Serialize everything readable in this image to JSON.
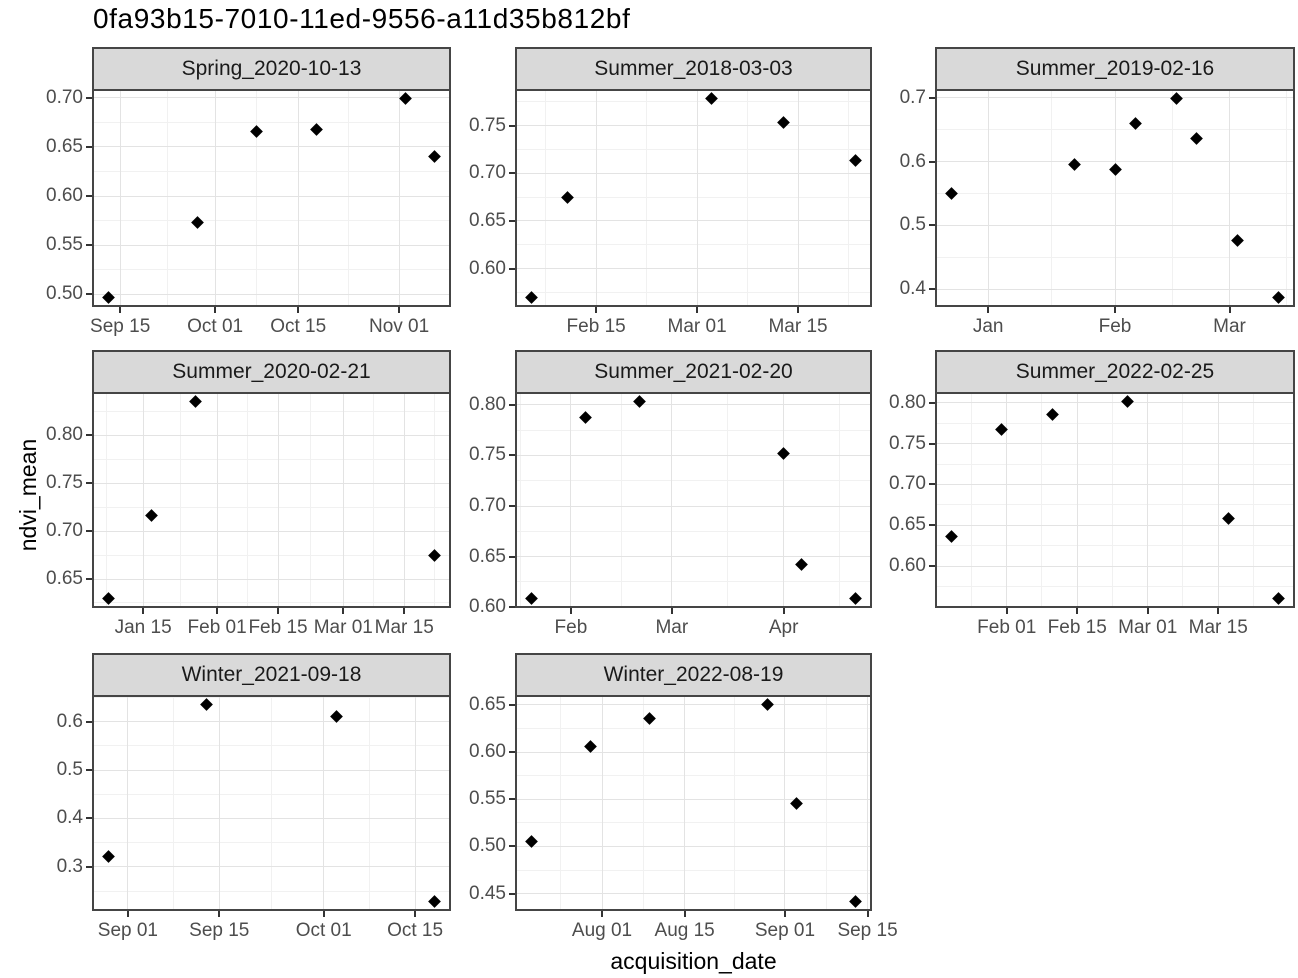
{
  "title": "0fa93b15-7010-11ed-9556-a11d35b812bf",
  "axes": {
    "y_label": "ndvi_mean",
    "x_label": "acquisition_date"
  },
  "colors": {
    "background": "#ffffff",
    "strip_bg": "#d9d9d9",
    "border": "#454545",
    "grid_major": "#e3e3e3",
    "grid_minor": "#f1f1f1",
    "axis_text": "#4d4d4d",
    "strip_text": "#1a1a1a",
    "point": "#000000"
  },
  "chart_data": [
    {
      "type": "scatter",
      "title": "Spring_2020-10-13",
      "x_ticks": [
        {
          "label": "Sep 15",
          "date": "2020-09-15"
        },
        {
          "label": "Oct 01",
          "date": "2020-10-01"
        },
        {
          "label": "Oct 15",
          "date": "2020-10-15"
        },
        {
          "label": "Nov 01",
          "date": "2020-11-01"
        }
      ],
      "y_ticks": [
        {
          "label": "0.50",
          "value": 0.5
        },
        {
          "label": "0.55",
          "value": 0.55
        },
        {
          "label": "0.60",
          "value": 0.6
        },
        {
          "label": "0.65",
          "value": 0.65
        },
        {
          "label": "0.70",
          "value": 0.7
        }
      ],
      "points": [
        {
          "date": "2020-09-13",
          "ndvi": 0.497
        },
        {
          "date": "2020-09-28",
          "ndvi": 0.573
        },
        {
          "date": "2020-10-08",
          "ndvi": 0.666
        },
        {
          "date": "2020-10-18",
          "ndvi": 0.668
        },
        {
          "date": "2020-11-02",
          "ndvi": 0.699
        },
        {
          "date": "2020-11-07",
          "ndvi": 0.64
        }
      ]
    },
    {
      "type": "scatter",
      "title": "Summer_2018-03-03",
      "x_ticks": [
        {
          "label": "Feb 15",
          "date": "2018-02-15"
        },
        {
          "label": "Mar 01",
          "date": "2018-03-01"
        },
        {
          "label": "Mar 15",
          "date": "2018-03-15"
        }
      ],
      "y_ticks": [
        {
          "label": "0.60",
          "value": 0.6
        },
        {
          "label": "0.65",
          "value": 0.65
        },
        {
          "label": "0.70",
          "value": 0.7
        },
        {
          "label": "0.75",
          "value": 0.75
        }
      ],
      "points": [
        {
          "date": "2018-02-06",
          "ndvi": 0.57
        },
        {
          "date": "2018-02-11",
          "ndvi": 0.675
        },
        {
          "date": "2018-03-03",
          "ndvi": 0.778
        },
        {
          "date": "2018-03-13",
          "ndvi": 0.753
        },
        {
          "date": "2018-03-23",
          "ndvi": 0.713
        }
      ]
    },
    {
      "type": "scatter",
      "title": "Summer_2019-02-16",
      "x_ticks": [
        {
          "label": "Jan",
          "date": "2019-01-01"
        },
        {
          "label": "Feb",
          "date": "2019-02-01"
        },
        {
          "label": "Mar",
          "date": "2019-03-01"
        }
      ],
      "y_ticks": [
        {
          "label": "0.4",
          "value": 0.4
        },
        {
          "label": "0.5",
          "value": 0.5
        },
        {
          "label": "0.6",
          "value": 0.6
        },
        {
          "label": "0.7",
          "value": 0.7
        }
      ],
      "points": [
        {
          "date": "2018-12-23",
          "ndvi": 0.55
        },
        {
          "date": "2019-01-22",
          "ndvi": 0.595
        },
        {
          "date": "2019-02-01",
          "ndvi": 0.587
        },
        {
          "date": "2019-02-06",
          "ndvi": 0.66
        },
        {
          "date": "2019-02-16",
          "ndvi": 0.698
        },
        {
          "date": "2019-02-21",
          "ndvi": 0.636
        },
        {
          "date": "2019-03-03",
          "ndvi": 0.476
        },
        {
          "date": "2019-03-13",
          "ndvi": 0.388
        }
      ]
    },
    {
      "type": "scatter",
      "title": "Summer_2020-02-21",
      "x_ticks": [
        {
          "label": "Jan 15",
          "date": "2020-01-15"
        },
        {
          "label": "Feb 01",
          "date": "2020-02-01"
        },
        {
          "label": "Feb 15",
          "date": "2020-02-15"
        },
        {
          "label": "Mar 01",
          "date": "2020-03-01"
        },
        {
          "label": "Mar 15",
          "date": "2020-03-15"
        }
      ],
      "y_ticks": [
        {
          "label": "0.65",
          "value": 0.65
        },
        {
          "label": "0.70",
          "value": 0.7
        },
        {
          "label": "0.75",
          "value": 0.75
        },
        {
          "label": "0.80",
          "value": 0.8
        }
      ],
      "points": [
        {
          "date": "2020-01-07",
          "ndvi": 0.63
        },
        {
          "date": "2020-01-17",
          "ndvi": 0.716
        },
        {
          "date": "2020-01-27",
          "ndvi": 0.835
        },
        {
          "date": "2020-03-22",
          "ndvi": 0.675
        }
      ]
    },
    {
      "type": "scatter",
      "title": "Summer_2021-02-20",
      "x_ticks": [
        {
          "label": "Feb",
          "date": "2021-02-01"
        },
        {
          "label": "Mar",
          "date": "2021-03-01"
        },
        {
          "label": "Apr",
          "date": "2021-04-01"
        }
      ],
      "y_ticks": [
        {
          "label": "0.60",
          "value": 0.6
        },
        {
          "label": "0.65",
          "value": 0.65
        },
        {
          "label": "0.70",
          "value": 0.7
        },
        {
          "label": "0.75",
          "value": 0.75
        },
        {
          "label": "0.80",
          "value": 0.8
        }
      ],
      "points": [
        {
          "date": "2021-01-21",
          "ndvi": 0.609
        },
        {
          "date": "2021-02-05",
          "ndvi": 0.788
        },
        {
          "date": "2021-02-20",
          "ndvi": 0.803
        },
        {
          "date": "2021-04-01",
          "ndvi": 0.752
        },
        {
          "date": "2021-04-06",
          "ndvi": 0.642
        },
        {
          "date": "2021-04-21",
          "ndvi": 0.609
        }
      ]
    },
    {
      "type": "scatter",
      "title": "Summer_2022-02-25",
      "x_ticks": [
        {
          "label": "Feb 01",
          "date": "2022-02-01"
        },
        {
          "label": "Feb 15",
          "date": "2022-02-15"
        },
        {
          "label": "Mar 01",
          "date": "2022-03-01"
        },
        {
          "label": "Mar 15",
          "date": "2022-03-15"
        }
      ],
      "y_ticks": [
        {
          "label": "0.60",
          "value": 0.6
        },
        {
          "label": "0.65",
          "value": 0.65
        },
        {
          "label": "0.70",
          "value": 0.7
        },
        {
          "label": "0.75",
          "value": 0.75
        },
        {
          "label": "0.80",
          "value": 0.8
        }
      ],
      "points": [
        {
          "date": "2022-01-21",
          "ndvi": 0.637
        },
        {
          "date": "2022-01-31",
          "ndvi": 0.767
        },
        {
          "date": "2022-02-10",
          "ndvi": 0.785
        },
        {
          "date": "2022-02-25",
          "ndvi": 0.801
        },
        {
          "date": "2022-03-17",
          "ndvi": 0.658
        },
        {
          "date": "2022-03-27",
          "ndvi": 0.561
        }
      ]
    },
    {
      "type": "scatter",
      "title": "Winter_2021-09-18",
      "x_ticks": [
        {
          "label": "Sep 01",
          "date": "2021-09-01"
        },
        {
          "label": "Sep 15",
          "date": "2021-09-15"
        },
        {
          "label": "Oct 01",
          "date": "2021-10-01"
        },
        {
          "label": "Oct 15",
          "date": "2021-10-15"
        }
      ],
      "y_ticks": [
        {
          "label": "0.3",
          "value": 0.3
        },
        {
          "label": "0.4",
          "value": 0.4
        },
        {
          "label": "0.5",
          "value": 0.5
        },
        {
          "label": "0.6",
          "value": 0.6
        }
      ],
      "points": [
        {
          "date": "2021-08-29",
          "ndvi": 0.321
        },
        {
          "date": "2021-09-13",
          "ndvi": 0.635
        },
        {
          "date": "2021-10-03",
          "ndvi": 0.611
        },
        {
          "date": "2021-10-18",
          "ndvi": 0.229
        }
      ]
    },
    {
      "type": "scatter",
      "title": "Winter_2022-08-19",
      "x_ticks": [
        {
          "label": "Aug 01",
          "date": "2022-08-01"
        },
        {
          "label": "Aug 15",
          "date": "2022-08-15"
        },
        {
          "label": "Sep 01",
          "date": "2022-09-01"
        },
        {
          "label": "Sep 15",
          "date": "2022-09-15"
        }
      ],
      "y_ticks": [
        {
          "label": "0.45",
          "value": 0.45
        },
        {
          "label": "0.50",
          "value": 0.5
        },
        {
          "label": "0.55",
          "value": 0.55
        },
        {
          "label": "0.60",
          "value": 0.6
        },
        {
          "label": "0.65",
          "value": 0.65
        }
      ],
      "points": [
        {
          "date": "2022-07-20",
          "ndvi": 0.505
        },
        {
          "date": "2022-07-30",
          "ndvi": 0.606
        },
        {
          "date": "2022-08-09",
          "ndvi": 0.635
        },
        {
          "date": "2022-08-29",
          "ndvi": 0.65
        },
        {
          "date": "2022-09-03",
          "ndvi": 0.546
        },
        {
          "date": "2022-09-13",
          "ndvi": 0.442
        }
      ]
    }
  ]
}
